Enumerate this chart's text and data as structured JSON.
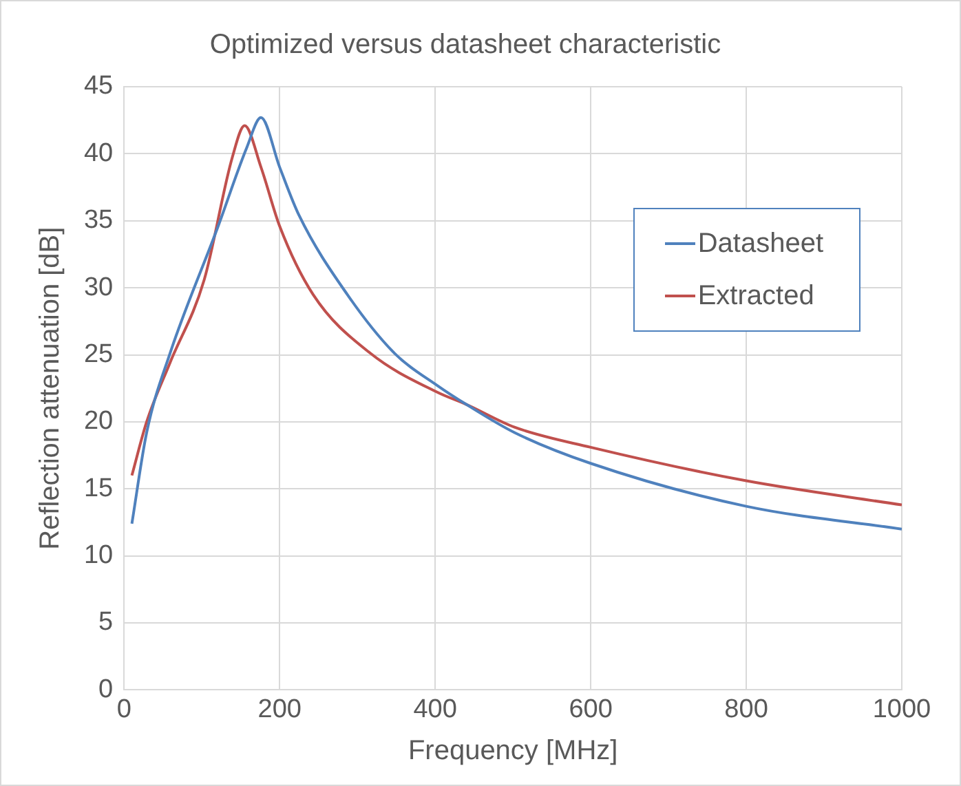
{
  "chart_data": {
    "type": "line",
    "title": "Optimized versus datasheet characteristic",
    "xlabel": "Frequency [MHz]",
    "ylabel": "Reflection attenuation [dB]",
    "xlim": [
      0,
      1000
    ],
    "xticks": [
      0,
      200,
      400,
      600,
      800,
      1000
    ],
    "ylim": [
      0,
      45
    ],
    "yticks": [
      0,
      5,
      10,
      15,
      20,
      25,
      30,
      35,
      40,
      45
    ],
    "grid": true,
    "legend": "top right",
    "marker": "none",
    "line_style": "solid",
    "series": [
      {
        "name": "Datasheet",
        "color": "#4f81bd",
        "x": [
          10,
          29,
          59,
          121,
          158,
          176,
          200,
          225,
          287,
          348,
          403,
          440,
          502,
          600,
          800,
          1000
        ],
        "values": [
          12.4,
          19.2,
          25.1,
          34.6,
          40.5,
          42.7,
          39.0,
          35.4,
          29.5,
          25.1,
          22.7,
          21.3,
          19.2,
          16.9,
          13.7,
          12.0
        ]
      },
      {
        "name": "Extracted",
        "color": "#c0504d",
        "x": [
          10,
          29,
          59,
          103,
          139,
          155,
          176,
          200,
          243,
          317,
          403,
          440,
          502,
          600,
          800,
          1000
        ],
        "values": [
          16.0,
          20.0,
          24.4,
          30.6,
          39.7,
          42.1,
          39.0,
          34.6,
          29.5,
          25.1,
          22.2,
          21.3,
          19.6,
          18.1,
          15.6,
          13.8
        ]
      }
    ]
  }
}
